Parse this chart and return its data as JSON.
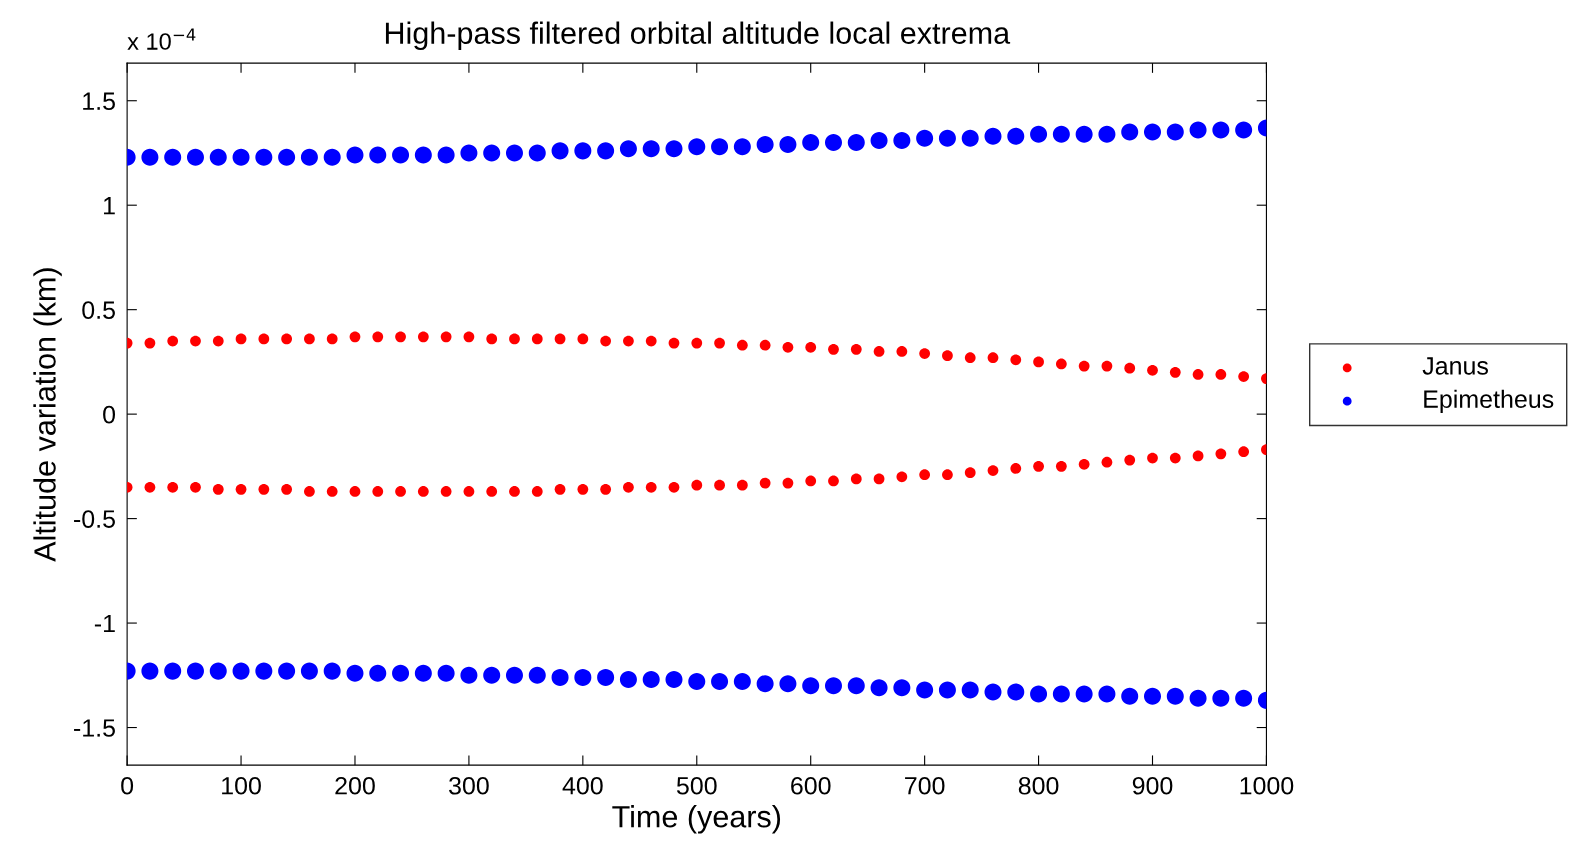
{
  "chart_data": {
    "type": "scatter",
    "title": "High-pass filtered orbital altitude local extrema",
    "xlabel": "Time (years)",
    "ylabel": "Altitude variation (km)",
    "annotations": [
      "x 10$^{−4}$"
    ],
    "xlim": [
      0,
      1000
    ],
    "xticks": [
      0,
      100,
      200,
      300,
      400,
      500,
      600,
      700,
      800,
      900,
      1000
    ],
    "ylim": [
      -1.68,
      1.68
    ],
    "yticks": [
      -1.5,
      -1,
      -0.5,
      0,
      0.5,
      1,
      1.5
    ],
    "grid": false,
    "legend": "right",
    "marker": "circle",
    "series": [
      {
        "name": "Janus",
        "color": "#ff0000",
        "x": [
          0,
          20,
          40,
          60,
          80,
          100,
          120,
          140,
          160,
          180,
          200,
          220,
          240,
          260,
          280,
          300,
          320,
          340,
          360,
          380,
          400,
          420,
          440,
          460,
          480,
          500,
          520,
          540,
          560,
          580,
          600,
          620,
          640,
          660,
          680,
          700,
          720,
          740,
          760,
          780,
          800,
          820,
          840,
          860,
          880,
          900,
          920,
          940,
          960,
          980,
          1000,
          0,
          20,
          40,
          60,
          80,
          100,
          120,
          140,
          160,
          180,
          200,
          220,
          240,
          260,
          280,
          300,
          320,
          340,
          360,
          380,
          400,
          420,
          440,
          460,
          480,
          500,
          520,
          540,
          560,
          580,
          600,
          620,
          640,
          660,
          680,
          700,
          720,
          740,
          760,
          780,
          800,
          820,
          840,
          860,
          880,
          900,
          920,
          940,
          960,
          980,
          1000
        ],
        "values": [
          0.34,
          0.34,
          0.35,
          0.35,
          0.35,
          0.36,
          0.36,
          0.36,
          0.36,
          0.36,
          0.37,
          0.37,
          0.37,
          0.37,
          0.37,
          0.37,
          0.36,
          0.36,
          0.36,
          0.36,
          0.36,
          0.35,
          0.35,
          0.35,
          0.34,
          0.34,
          0.34,
          0.33,
          0.33,
          0.32,
          0.32,
          0.31,
          0.31,
          0.3,
          0.3,
          0.29,
          0.28,
          0.27,
          0.27,
          0.26,
          0.25,
          0.24,
          0.23,
          0.23,
          0.22,
          0.21,
          0.2,
          0.19,
          0.19,
          0.18,
          0.17,
          -0.35,
          -0.35,
          -0.35,
          -0.35,
          -0.36,
          -0.36,
          -0.36,
          -0.36,
          -0.37,
          -0.37,
          -0.37,
          -0.37,
          -0.37,
          -0.37,
          -0.37,
          -0.37,
          -0.37,
          -0.37,
          -0.37,
          -0.36,
          -0.36,
          -0.36,
          -0.35,
          -0.35,
          -0.35,
          -0.34,
          -0.34,
          -0.34,
          -0.33,
          -0.33,
          -0.32,
          -0.32,
          -0.31,
          -0.31,
          -0.3,
          -0.29,
          -0.29,
          -0.28,
          -0.27,
          -0.26,
          -0.25,
          -0.25,
          -0.24,
          -0.23,
          -0.22,
          -0.21,
          -0.21,
          -0.2,
          -0.19,
          -0.18,
          -0.17
        ]
      },
      {
        "name": "Epimetheus",
        "color": "#0000ff",
        "x": [
          0,
          20,
          40,
          60,
          80,
          100,
          120,
          140,
          160,
          180,
          200,
          220,
          240,
          260,
          280,
          300,
          320,
          340,
          360,
          380,
          400,
          420,
          440,
          460,
          480,
          500,
          520,
          540,
          560,
          580,
          600,
          620,
          640,
          660,
          680,
          700,
          720,
          740,
          760,
          780,
          800,
          820,
          840,
          860,
          880,
          900,
          920,
          940,
          960,
          980,
          1000,
          0,
          20,
          40,
          60,
          80,
          100,
          120,
          140,
          160,
          180,
          200,
          220,
          240,
          260,
          280,
          300,
          320,
          340,
          360,
          380,
          400,
          420,
          440,
          460,
          480,
          500,
          520,
          540,
          560,
          580,
          600,
          620,
          640,
          660,
          680,
          700,
          720,
          740,
          760,
          780,
          800,
          820,
          840,
          860,
          880,
          900,
          920,
          940,
          960,
          980,
          1000
        ],
        "values": [
          1.23,
          1.23,
          1.23,
          1.23,
          1.23,
          1.23,
          1.23,
          1.23,
          1.23,
          1.23,
          1.24,
          1.24,
          1.24,
          1.24,
          1.24,
          1.25,
          1.25,
          1.25,
          1.25,
          1.26,
          1.26,
          1.26,
          1.27,
          1.27,
          1.27,
          1.28,
          1.28,
          1.28,
          1.29,
          1.29,
          1.3,
          1.3,
          1.3,
          1.31,
          1.31,
          1.32,
          1.32,
          1.32,
          1.33,
          1.33,
          1.34,
          1.34,
          1.34,
          1.34,
          1.35,
          1.35,
          1.35,
          1.36,
          1.36,
          1.36,
          1.37,
          -1.23,
          -1.23,
          -1.23,
          -1.23,
          -1.23,
          -1.23,
          -1.23,
          -1.23,
          -1.23,
          -1.23,
          -1.24,
          -1.24,
          -1.24,
          -1.24,
          -1.24,
          -1.25,
          -1.25,
          -1.25,
          -1.25,
          -1.26,
          -1.26,
          -1.26,
          -1.27,
          -1.27,
          -1.27,
          -1.28,
          -1.28,
          -1.28,
          -1.29,
          -1.29,
          -1.3,
          -1.3,
          -1.3,
          -1.31,
          -1.31,
          -1.32,
          -1.32,
          -1.32,
          -1.33,
          -1.33,
          -1.34,
          -1.34,
          -1.34,
          -1.34,
          -1.35,
          -1.35,
          -1.35,
          -1.36,
          -1.36,
          -1.36,
          -1.37
        ]
      }
    ]
  }
}
